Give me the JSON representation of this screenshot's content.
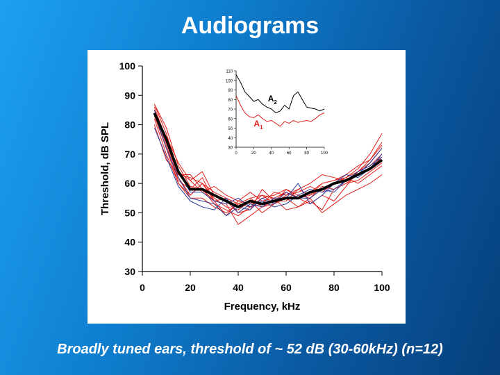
{
  "slide": {
    "title": "Audiograms",
    "caption": "Broadly tuned ears, threshold of ~ 52 dB (30-60kHz) (n=12)"
  },
  "colors": {
    "individual_curve": "#e0201a",
    "blue_curve": "#2a3a9a",
    "mean_curve": "#000000",
    "a2_curve": "#000000",
    "a1_curve": "#e0201a"
  },
  "chart_data": [
    {
      "type": "line",
      "xlabel": "Frequency, kHz",
      "ylabel": "Threshold, dB SPL",
      "xlim": [
        0,
        100
      ],
      "ylim": [
        30,
        100
      ],
      "xticks": [
        0,
        20,
        40,
        60,
        80,
        100
      ],
      "yticks": [
        30,
        40,
        50,
        60,
        70,
        80,
        90,
        100
      ],
      "grid": false,
      "x": [
        5,
        10,
        15,
        20,
        25,
        30,
        35,
        40,
        45,
        50,
        55,
        60,
        65,
        70,
        75,
        80,
        85,
        90,
        95,
        100
      ],
      "series": [
        {
          "color": "red",
          "values": [
            87,
            79,
            66,
            59,
            58,
            54,
            55,
            53,
            55,
            52,
            54,
            57,
            55,
            56,
            58,
            60,
            62,
            65,
            70,
            77
          ]
        },
        {
          "color": "red",
          "values": [
            86,
            75,
            63,
            62,
            60,
            57,
            55,
            53,
            55,
            56,
            53,
            56,
            57,
            59,
            57,
            60,
            62,
            64,
            68,
            74
          ]
        },
        {
          "color": "red",
          "values": [
            84,
            76,
            67,
            61,
            64,
            56,
            54,
            50,
            51,
            58,
            54,
            54,
            58,
            60,
            63,
            62,
            61,
            64,
            66,
            70
          ]
        },
        {
          "color": "red",
          "values": [
            85,
            74,
            62,
            56,
            60,
            54,
            53,
            46,
            49,
            52,
            53,
            55,
            52,
            54,
            51,
            58,
            60,
            63,
            65,
            69
          ]
        },
        {
          "color": "red",
          "values": [
            83,
            72,
            60,
            55,
            55,
            52,
            50,
            53,
            52,
            55,
            56,
            58,
            55,
            53,
            56,
            54,
            59,
            64,
            67,
            72
          ]
        },
        {
          "color": "red",
          "values": [
            87,
            77,
            64,
            61,
            57,
            59,
            56,
            54,
            57,
            54,
            55,
            57,
            55,
            57,
            60,
            61,
            63,
            66,
            68,
            73
          ]
        },
        {
          "color": "red",
          "values": [
            85,
            73,
            61,
            58,
            62,
            54,
            49,
            54,
            53,
            56,
            55,
            51,
            52,
            55,
            50,
            53,
            56,
            58,
            60,
            63
          ]
        },
        {
          "color": "red",
          "values": [
            82,
            70,
            60,
            56,
            60,
            55,
            52,
            51,
            54,
            50,
            53,
            58,
            56,
            55,
            59,
            58,
            60,
            61,
            64,
            67
          ]
        },
        {
          "color": "red",
          "values": [
            80,
            68,
            63,
            63,
            58,
            53,
            51,
            49,
            52,
            53,
            57,
            56,
            58,
            56,
            60,
            61,
            62,
            60,
            63,
            66
          ]
        },
        {
          "color": "blue",
          "values": [
            84,
            72,
            62,
            55,
            54,
            53,
            49,
            52,
            51,
            55,
            53,
            57,
            55,
            55,
            58,
            57,
            61,
            63,
            67,
            72
          ]
        },
        {
          "color": "blue",
          "values": [
            79,
            69,
            59,
            54,
            52,
            51,
            55,
            50,
            53,
            52,
            55,
            55,
            60,
            53,
            56,
            60,
            63,
            62,
            65,
            70
          ]
        },
        {
          "color": "blue",
          "values": [
            85,
            75,
            64,
            57,
            57,
            54,
            53,
            55,
            52,
            54,
            52,
            53,
            56,
            58,
            57,
            58,
            61,
            64,
            66,
            69
          ]
        },
        {
          "color": "mean",
          "values": [
            84,
            75,
            64,
            58,
            58,
            56,
            54,
            52,
            54,
            53,
            54,
            55,
            55,
            57,
            58,
            60,
            61,
            63,
            65,
            68
          ]
        }
      ]
    },
    {
      "type": "line",
      "xlim": [
        0,
        100
      ],
      "ylim": [
        30,
        110
      ],
      "xticks": [
        0,
        20,
        40,
        60,
        80,
        100
      ],
      "yticks": [
        30,
        40,
        50,
        60,
        70,
        80,
        90,
        100,
        110
      ],
      "x": [
        0,
        5,
        10,
        15,
        20,
        25,
        30,
        35,
        40,
        45,
        50,
        55,
        60,
        65,
        70,
        75,
        80,
        85,
        90,
        95,
        100
      ],
      "series": [
        {
          "name": "A2",
          "color": "black",
          "values": [
            106,
            98,
            88,
            83,
            78,
            80,
            75,
            72,
            70,
            66,
            68,
            74,
            70,
            84,
            88,
            80,
            72,
            71,
            70,
            68,
            70
          ]
        },
        {
          "name": "A1",
          "color": "red",
          "values": [
            84,
            74,
            66,
            62,
            61,
            64,
            60,
            57,
            58,
            55,
            52,
            57,
            55,
            58,
            56,
            57,
            58,
            57,
            60,
            64,
            66
          ]
        }
      ]
    }
  ]
}
